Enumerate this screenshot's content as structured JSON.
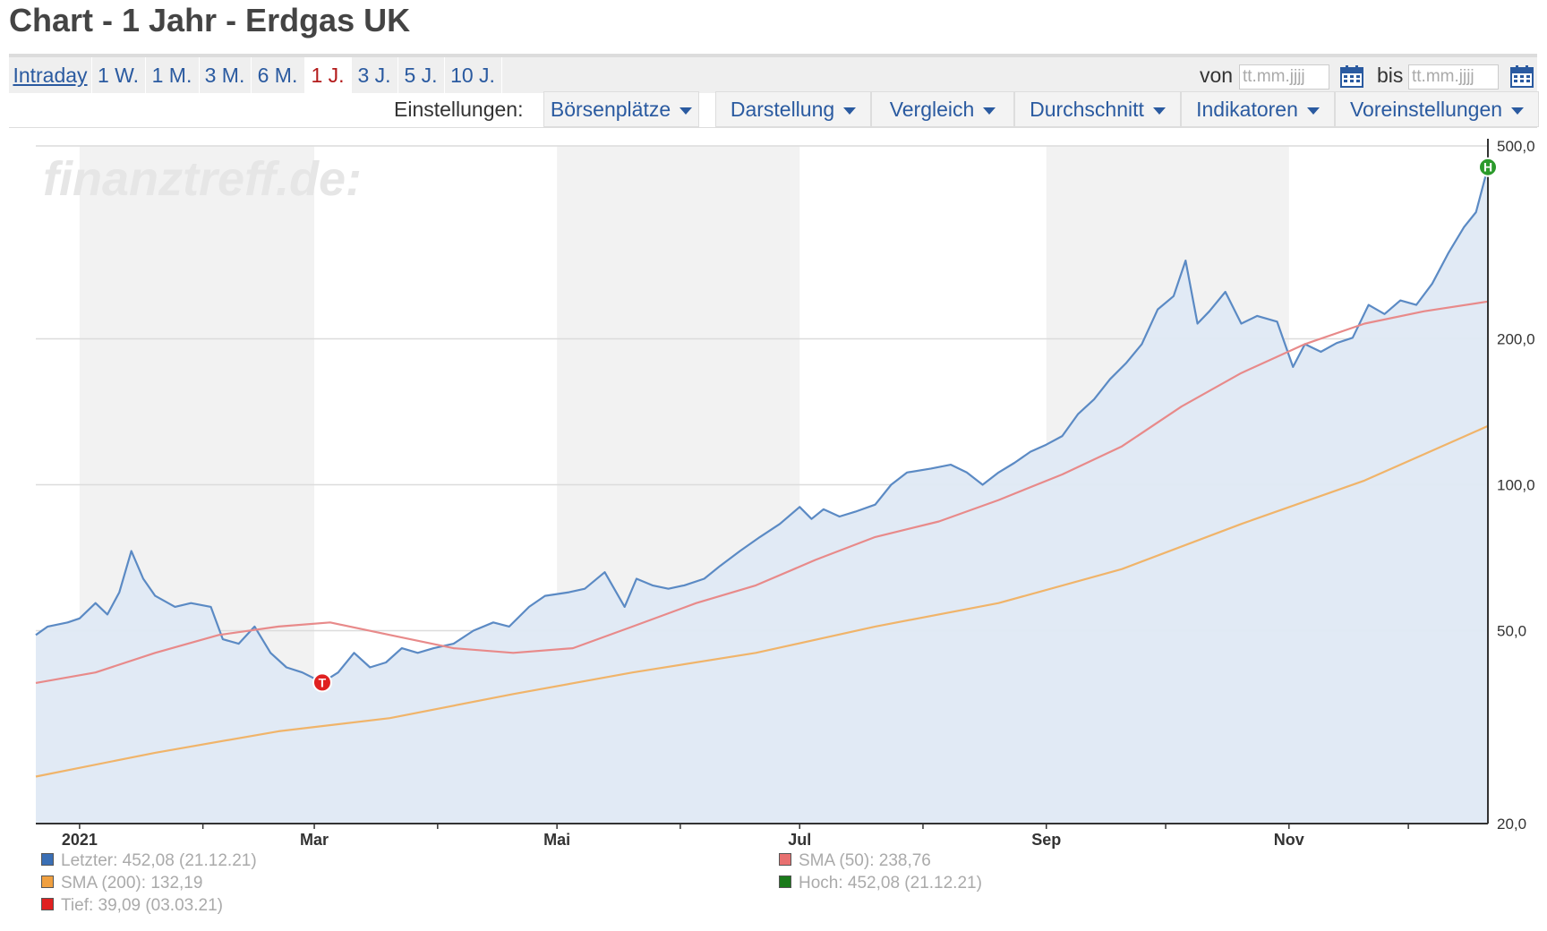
{
  "page_title": "Chart - 1 Jahr - Erdgas UK",
  "tabs": [
    {
      "label": "Intraday",
      "active": false
    },
    {
      "label": "1 W.",
      "active": false
    },
    {
      "label": "1 M.",
      "active": false
    },
    {
      "label": "3 M.",
      "active": false
    },
    {
      "label": "6 M.",
      "active": false
    },
    {
      "label": "1 J.",
      "active": true
    },
    {
      "label": "3 J.",
      "active": false
    },
    {
      "label": "5 J.",
      "active": false
    },
    {
      "label": "10 J.",
      "active": false
    }
  ],
  "date_range": {
    "from_label": "von",
    "from_placeholder": "tt.mm.jjjj",
    "to_label": "bis",
    "to_placeholder": "tt.mm.jjjj"
  },
  "settings": {
    "label": "Einstellungen:",
    "buttons": [
      "Börsenplätze",
      "Darstellung",
      "Vergleich",
      "Durchschnitt",
      "Indikatoren",
      "Voreinstellungen"
    ]
  },
  "watermark": "finanztreff.de:",
  "colors": {
    "price": "#5b8ac4",
    "area": "#dfe9f4",
    "sma50": "#e88a8a",
    "sma200": "#f0b46a",
    "high": "#2b9a2b",
    "low": "#e02020",
    "link": "#2a5aa0",
    "active_tab": "#b31b1b"
  },
  "chart_data": {
    "type": "line",
    "scale": "log",
    "ylim": [
      20,
      500
    ],
    "y_ticks": [
      "500,0",
      "200,0",
      "100,0",
      "50,0",
      "20,0"
    ],
    "x_ticks": [
      "2021",
      "Mar",
      "Mai",
      "Jul",
      "Sep",
      "Nov"
    ],
    "x_range": [
      "2020-12-21",
      "2021-12-21"
    ],
    "series": [
      {
        "name": "Letzter",
        "values": [
          [
            "2020-12-21",
            49
          ],
          [
            "2020-12-24",
            51
          ],
          [
            "2020-12-29",
            52
          ],
          [
            "2021-01-01",
            53
          ],
          [
            "2021-01-05",
            57
          ],
          [
            "2021-01-08",
            54
          ],
          [
            "2021-01-11",
            60
          ],
          [
            "2021-01-14",
            73
          ],
          [
            "2021-01-17",
            64
          ],
          [
            "2021-01-20",
            59
          ],
          [
            "2021-01-25",
            56
          ],
          [
            "2021-01-29",
            57
          ],
          [
            "2021-02-03",
            56
          ],
          [
            "2021-02-06",
            48
          ],
          [
            "2021-02-10",
            47
          ],
          [
            "2021-02-14",
            51
          ],
          [
            "2021-02-18",
            45
          ],
          [
            "2021-02-22",
            42
          ],
          [
            "2021-02-26",
            41
          ],
          [
            "2021-03-03",
            39.09
          ],
          [
            "2021-03-07",
            41
          ],
          [
            "2021-03-11",
            45
          ],
          [
            "2021-03-15",
            42
          ],
          [
            "2021-03-19",
            43
          ],
          [
            "2021-03-23",
            46
          ],
          [
            "2021-03-27",
            45
          ],
          [
            "2021-03-31",
            46
          ],
          [
            "2021-04-05",
            47
          ],
          [
            "2021-04-10",
            50
          ],
          [
            "2021-04-15",
            52
          ],
          [
            "2021-04-19",
            51
          ],
          [
            "2021-04-24",
            56
          ],
          [
            "2021-04-28",
            59
          ],
          [
            "2021-05-04",
            60
          ],
          [
            "2021-05-08",
            61
          ],
          [
            "2021-05-13",
            66
          ],
          [
            "2021-05-18",
            56
          ],
          [
            "2021-05-21",
            64
          ],
          [
            "2021-05-25",
            62
          ],
          [
            "2021-05-29",
            61
          ],
          [
            "2021-06-02",
            62
          ],
          [
            "2021-06-07",
            64
          ],
          [
            "2021-06-11",
            68
          ],
          [
            "2021-06-16",
            73
          ],
          [
            "2021-06-21",
            78
          ],
          [
            "2021-06-26",
            83
          ],
          [
            "2021-07-01",
            90
          ],
          [
            "2021-07-04",
            85
          ],
          [
            "2021-07-07",
            89
          ],
          [
            "2021-07-11",
            86
          ],
          [
            "2021-07-15",
            88
          ],
          [
            "2021-07-20",
            91
          ],
          [
            "2021-07-24",
            100
          ],
          [
            "2021-07-28",
            106
          ],
          [
            "2021-08-03",
            108
          ],
          [
            "2021-08-08",
            110
          ],
          [
            "2021-08-12",
            106
          ],
          [
            "2021-08-16",
            100
          ],
          [
            "2021-08-20",
            106
          ],
          [
            "2021-08-24",
            111
          ],
          [
            "2021-08-28",
            117
          ],
          [
            "2021-09-01",
            121
          ],
          [
            "2021-09-05",
            126
          ],
          [
            "2021-09-09",
            140
          ],
          [
            "2021-09-13",
            150
          ],
          [
            "2021-09-17",
            165
          ],
          [
            "2021-09-21",
            178
          ],
          [
            "2021-09-25",
            195
          ],
          [
            "2021-09-29",
            230
          ],
          [
            "2021-10-03",
            245
          ],
          [
            "2021-10-06",
            290
          ],
          [
            "2021-10-09",
            215
          ],
          [
            "2021-10-12",
            228
          ],
          [
            "2021-10-16",
            250
          ],
          [
            "2021-10-20",
            215
          ],
          [
            "2021-10-24",
            223
          ],
          [
            "2021-10-29",
            217
          ],
          [
            "2021-11-02",
            175
          ],
          [
            "2021-11-05",
            195
          ],
          [
            "2021-11-09",
            188
          ],
          [
            "2021-11-13",
            196
          ],
          [
            "2021-11-17",
            201
          ],
          [
            "2021-11-21",
            235
          ],
          [
            "2021-11-25",
            225
          ],
          [
            "2021-11-29",
            240
          ],
          [
            "2021-12-03",
            235
          ],
          [
            "2021-12-07",
            260
          ],
          [
            "2021-12-11",
            300
          ],
          [
            "2021-12-15",
            340
          ],
          [
            "2021-12-18",
            365
          ],
          [
            "2021-12-21",
            452.08
          ]
        ]
      },
      {
        "name": "SMA (50)",
        "values": [
          [
            "2020-12-21",
            39
          ],
          [
            "2021-01-05",
            41
          ],
          [
            "2021-01-20",
            45
          ],
          [
            "2021-02-05",
            49
          ],
          [
            "2021-02-20",
            51
          ],
          [
            "2021-03-05",
            52
          ],
          [
            "2021-03-20",
            49
          ],
          [
            "2021-04-05",
            46
          ],
          [
            "2021-04-20",
            45
          ],
          [
            "2021-05-05",
            46
          ],
          [
            "2021-05-20",
            51
          ],
          [
            "2021-06-05",
            57
          ],
          [
            "2021-06-20",
            62
          ],
          [
            "2021-07-05",
            70
          ],
          [
            "2021-07-20",
            78
          ],
          [
            "2021-08-05",
            84
          ],
          [
            "2021-08-20",
            93
          ],
          [
            "2021-09-05",
            105
          ],
          [
            "2021-09-20",
            120
          ],
          [
            "2021-10-05",
            145
          ],
          [
            "2021-10-20",
            170
          ],
          [
            "2021-11-05",
            195
          ],
          [
            "2021-11-20",
            215
          ],
          [
            "2021-12-05",
            228
          ],
          [
            "2021-12-21",
            238.76
          ]
        ]
      },
      {
        "name": "SMA (200)",
        "values": [
          [
            "2020-12-21",
            25
          ],
          [
            "2021-01-20",
            28
          ],
          [
            "2021-02-20",
            31
          ],
          [
            "2021-03-20",
            33
          ],
          [
            "2021-04-20",
            37
          ],
          [
            "2021-05-20",
            41
          ],
          [
            "2021-06-20",
            45
          ],
          [
            "2021-07-20",
            51
          ],
          [
            "2021-08-20",
            57
          ],
          [
            "2021-09-20",
            67
          ],
          [
            "2021-10-20",
            83
          ],
          [
            "2021-11-20",
            102
          ],
          [
            "2021-12-21",
            132.19
          ]
        ]
      }
    ],
    "markers": [
      {
        "label": "H",
        "date": "2021-12-21",
        "value": 452.08
      },
      {
        "label": "T",
        "date": "2021-03-03",
        "value": 39.09
      }
    ],
    "legend": [
      {
        "text": "Letzter: 452,08 (21.12.21)",
        "color": "#3a6fb5"
      },
      {
        "text": "SMA (200): 132,19",
        "color": "#f0a040"
      },
      {
        "text": "Tief: 39,09 (03.03.21)",
        "color": "#e02020"
      },
      {
        "text": "SMA (50): 238,76",
        "color": "#e87070"
      },
      {
        "text": "Hoch: 452,08 (21.12.21)",
        "color": "#1a7a1a"
      }
    ]
  }
}
